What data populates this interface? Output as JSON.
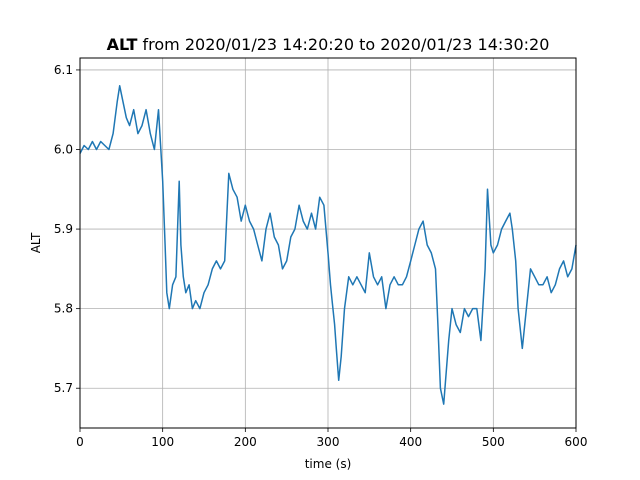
{
  "chart_data": {
    "type": "line",
    "title_bold": "ALT",
    "title_rest": " from 2020/01/23 14:20:20 to 2020/01/23 14:30:20",
    "xlabel": "time (s)",
    "ylabel": "ALT",
    "xlim": [
      0,
      600
    ],
    "ylim": [
      5.65,
      6.115
    ],
    "grid": true,
    "x_ticks": [
      0,
      100,
      200,
      300,
      400,
      500,
      600
    ],
    "x_tick_labels": [
      "0",
      "100",
      "200",
      "300",
      "400",
      "500",
      "600"
    ],
    "y_ticks": [
      5.7,
      5.8,
      5.9,
      6.0,
      6.1
    ],
    "y_tick_labels": [
      "5.7",
      "5.8",
      "5.9",
      "6.0",
      "6.1"
    ],
    "series": [
      {
        "color": "#1f77b4",
        "x": [
          0,
          5,
          10,
          15,
          20,
          25,
          30,
          35,
          40,
          45,
          48,
          52,
          56,
          60,
          65,
          70,
          75,
          80,
          85,
          90,
          95,
          100,
          103,
          105,
          108,
          112,
          116,
          120,
          122,
          125,
          128,
          132,
          136,
          140,
          145,
          150,
          155,
          160,
          165,
          170,
          175,
          180,
          185,
          190,
          195,
          200,
          205,
          210,
          215,
          220,
          225,
          230,
          235,
          240,
          245,
          250,
          255,
          260,
          265,
          270,
          275,
          280,
          285,
          290,
          295,
          300,
          303,
          305,
          308,
          310,
          313,
          316,
          320,
          325,
          330,
          335,
          340,
          345,
          350,
          355,
          360,
          365,
          370,
          375,
          380,
          385,
          390,
          395,
          400,
          405,
          410,
          415,
          420,
          425,
          430,
          433,
          436,
          440,
          443,
          446,
          450,
          455,
          460,
          465,
          470,
          475,
          480,
          485,
          490,
          493,
          497,
          500,
          505,
          510,
          515,
          520,
          523,
          527,
          530,
          535,
          540,
          545,
          550,
          555,
          560,
          565,
          570,
          575,
          580,
          585,
          590,
          595,
          600
        ],
        "y": [
          5.995,
          6.005,
          6.0,
          6.01,
          6.0,
          6.01,
          6.005,
          6.0,
          6.02,
          6.06,
          6.08,
          6.06,
          6.04,
          6.03,
          6.05,
          6.02,
          6.03,
          6.05,
          6.02,
          6.0,
          6.05,
          5.96,
          5.88,
          5.82,
          5.8,
          5.83,
          5.84,
          5.96,
          5.88,
          5.84,
          5.82,
          5.83,
          5.8,
          5.81,
          5.8,
          5.82,
          5.83,
          5.85,
          5.86,
          5.85,
          5.86,
          5.97,
          5.95,
          5.94,
          5.91,
          5.93,
          5.91,
          5.9,
          5.88,
          5.86,
          5.9,
          5.92,
          5.89,
          5.88,
          5.85,
          5.86,
          5.89,
          5.9,
          5.93,
          5.91,
          5.9,
          5.92,
          5.9,
          5.94,
          5.93,
          5.87,
          5.83,
          5.81,
          5.78,
          5.75,
          5.71,
          5.74,
          5.8,
          5.84,
          5.83,
          5.84,
          5.83,
          5.82,
          5.87,
          5.84,
          5.83,
          5.84,
          5.8,
          5.83,
          5.84,
          5.83,
          5.83,
          5.84,
          5.86,
          5.88,
          5.9,
          5.91,
          5.88,
          5.87,
          5.85,
          5.78,
          5.7,
          5.68,
          5.72,
          5.76,
          5.8,
          5.78,
          5.77,
          5.8,
          5.79,
          5.8,
          5.8,
          5.76,
          5.85,
          5.95,
          5.88,
          5.87,
          5.88,
          5.9,
          5.91,
          5.92,
          5.9,
          5.86,
          5.8,
          5.75,
          5.8,
          5.85,
          5.84,
          5.83,
          5.83,
          5.84,
          5.82,
          5.83,
          5.85,
          5.86,
          5.84,
          5.85,
          5.88
        ]
      }
    ]
  }
}
